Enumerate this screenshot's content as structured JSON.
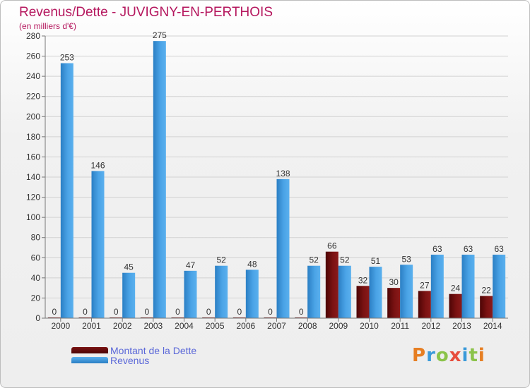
{
  "chart_data": {
    "type": "bar",
    "title": "Revenus/Dette - JUVIGNY-EN-PERTHOIS",
    "subtitle": "(en milliers d'€)",
    "categories": [
      "2000",
      "2001",
      "2002",
      "2003",
      "2004",
      "2005",
      "2006",
      "2007",
      "2008",
      "2009",
      "2010",
      "2011",
      "2012",
      "2013",
      "2014"
    ],
    "series": [
      {
        "name": "Montant de la Dette",
        "color": "#6b0a0a",
        "values": [
          0,
          0,
          0,
          0,
          0,
          0,
          0,
          0,
          0,
          66,
          32,
          30,
          27,
          24,
          22
        ]
      },
      {
        "name": "Revenus",
        "color": "#3d95dc",
        "values": [
          253,
          146,
          45,
          275,
          47,
          52,
          48,
          138,
          52,
          52,
          51,
          53,
          63,
          63,
          63
        ]
      }
    ],
    "ylim": [
      0,
      280
    ],
    "yticks": [
      0,
      20,
      40,
      60,
      80,
      100,
      120,
      140,
      160,
      180,
      200,
      220,
      240,
      260,
      280
    ],
    "grid": true,
    "legend": "bottom-left"
  },
  "logo": {
    "text": "Proxiti"
  }
}
